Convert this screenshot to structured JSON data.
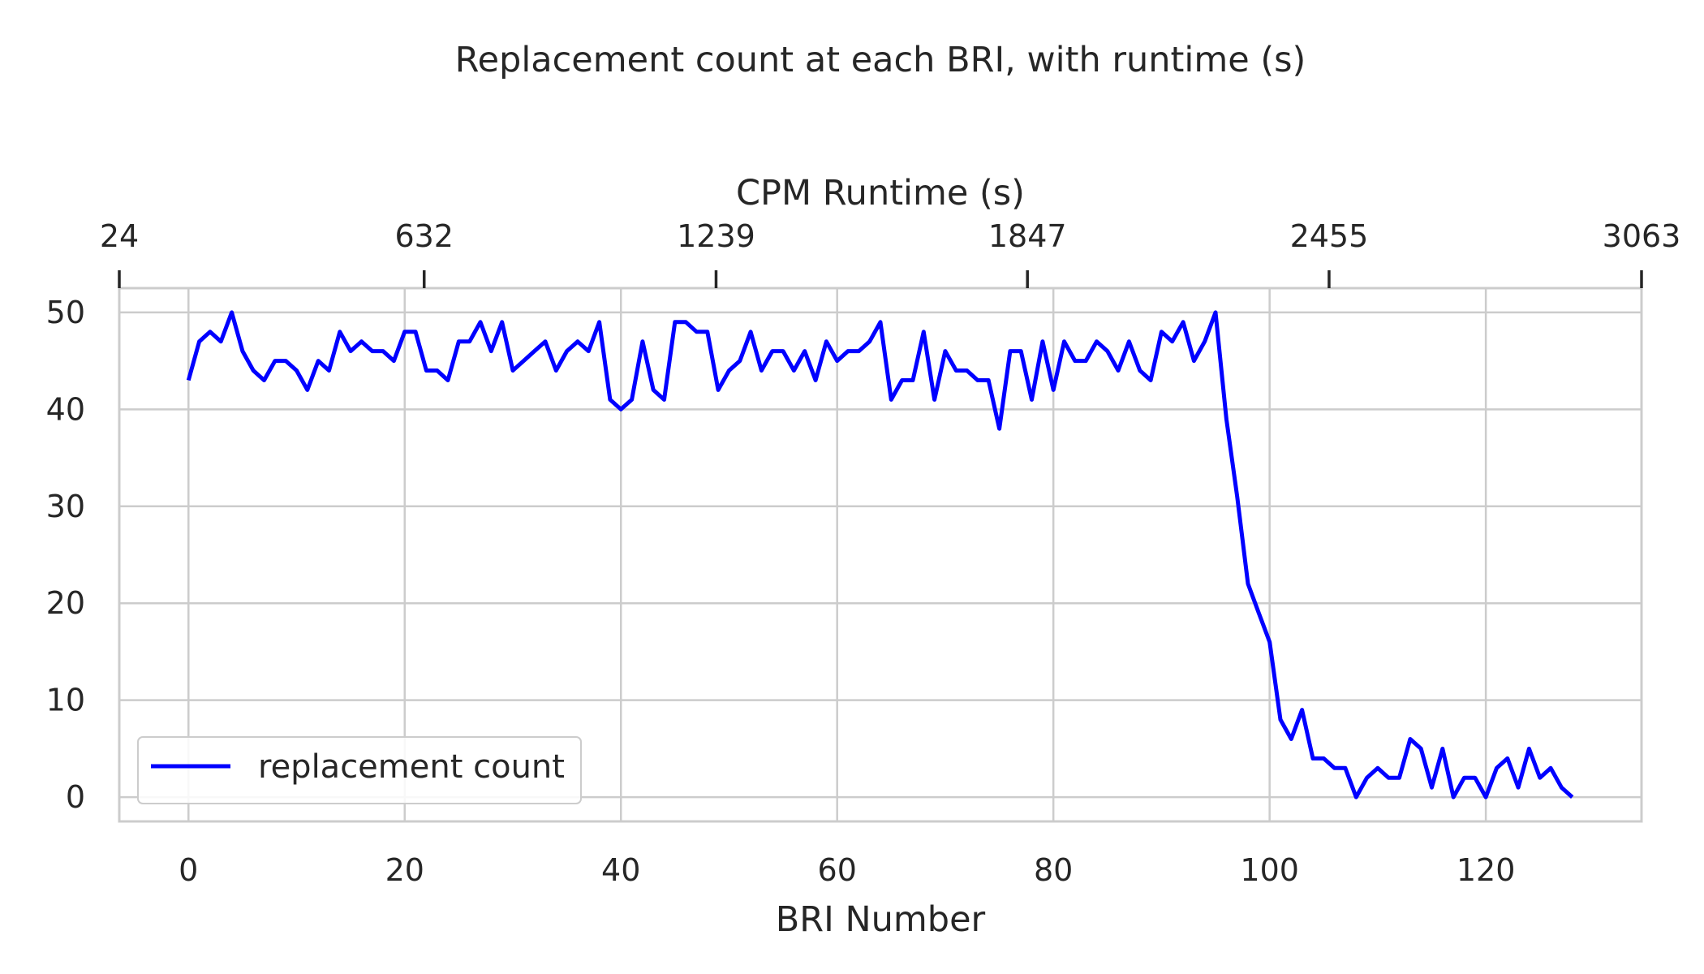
{
  "chart_data": {
    "type": "line",
    "title": "Replacement count at each BRI, with runtime (s)",
    "xlabel": "BRI Number",
    "ylabel": "",
    "top_xlabel": "CPM Runtime (s)",
    "xlim": [
      -6.4,
      134.4
    ],
    "ylim": [
      -2.5,
      52.5
    ],
    "x_ticks": [
      0,
      20,
      40,
      60,
      80,
      100,
      120
    ],
    "y_ticks": [
      0,
      10,
      20,
      30,
      40,
      50
    ],
    "top_ticks": [
      {
        "label": "24",
        "x": -6.4
      },
      {
        "label": "632",
        "x": 21.8
      },
      {
        "label": "1239",
        "x": 48.8
      },
      {
        "label": "1847",
        "x": 77.6
      },
      {
        "label": "2455",
        "x": 105.5
      },
      {
        "label": "3063",
        "x": 134.4
      }
    ],
    "grid": true,
    "legend_position": "lower-left",
    "line_color": "#0000ff",
    "series": [
      {
        "name": "replacement count",
        "x_start": 0,
        "values": [
          43,
          47,
          48,
          47,
          50,
          46,
          44,
          43,
          45,
          45,
          44,
          42,
          45,
          44,
          48,
          46,
          47,
          46,
          46,
          45,
          48,
          48,
          44,
          44,
          43,
          47,
          47,
          49,
          46,
          49,
          44,
          45,
          46,
          47,
          44,
          46,
          47,
          46,
          49,
          41,
          40,
          41,
          47,
          42,
          41,
          49,
          49,
          48,
          48,
          42,
          44,
          45,
          48,
          44,
          46,
          46,
          44,
          46,
          43,
          47,
          45,
          46,
          46,
          47,
          49,
          41,
          43,
          43,
          48,
          41,
          46,
          44,
          44,
          43,
          43,
          38,
          46,
          46,
          41,
          47,
          42,
          47,
          45,
          45,
          47,
          46,
          44,
          47,
          44,
          43,
          48,
          47,
          49,
          45,
          47,
          50,
          39,
          31,
          22,
          19,
          16,
          8,
          6,
          9,
          4,
          4,
          3,
          3,
          0,
          2,
          3,
          2,
          2,
          6,
          5,
          1,
          5,
          0,
          2,
          2,
          0,
          3,
          4,
          1,
          5,
          2,
          3,
          1,
          0
        ]
      }
    ]
  }
}
